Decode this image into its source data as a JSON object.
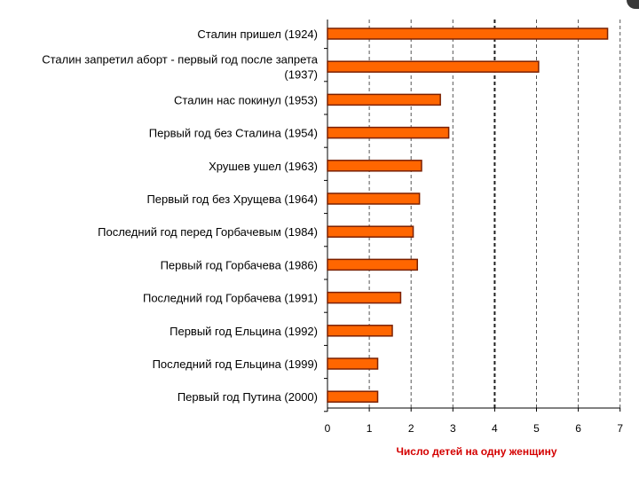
{
  "chart_data": {
    "type": "bar",
    "orientation": "horizontal",
    "title": "",
    "xlabel": "Число детей на одну женщину",
    "ylabel": "",
    "xlim": [
      0,
      7
    ],
    "xticks": [
      "0",
      "1",
      "2",
      "3",
      "4",
      "5",
      "6",
      "7"
    ],
    "grid": "vertical-dashed",
    "highlight_gridline": 4,
    "categories": [
      [
        "Сталин пришел (1924)"
      ],
      [
        "Сталин запретил аборт - первый год после запрета",
        "(1937)"
      ],
      [
        "Сталин нас покинул (1953)"
      ],
      [
        "Первый год без Сталина (1954)"
      ],
      [
        "Хрушев ушел (1963)"
      ],
      [
        "Первый год без Хрущева (1964)"
      ],
      [
        "Последний год перед Горбачевым (1984)"
      ],
      [
        "Первый год Горбачева (1986)"
      ],
      [
        "Последний год Горбачева (1991)"
      ],
      [
        "Первый год Ельцина (1992)"
      ],
      [
        "Последний год Ельцина (1999)"
      ],
      [
        "Первый год Путина (2000)"
      ]
    ],
    "values": [
      6.7,
      5.05,
      2.7,
      2.9,
      2.25,
      2.2,
      2.05,
      2.15,
      1.75,
      1.55,
      1.2,
      1.2
    ],
    "colors": {
      "bar": "#ff6600",
      "bar_border": "#7a2000",
      "label": "#000000",
      "xlabel": "#d40000",
      "grid": "#555555"
    }
  }
}
